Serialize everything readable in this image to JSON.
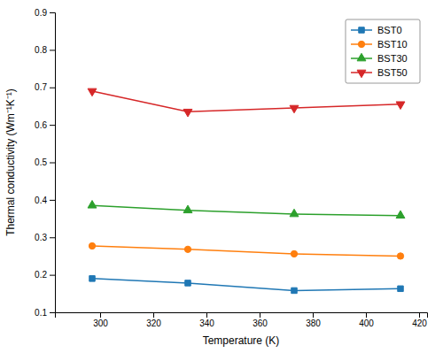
{
  "chart_data": {
    "type": "line",
    "xlabel": "Temperature (K)",
    "ylabel": "Thermal conductivity (Wm⁻¹K⁻¹)",
    "x": [
      297,
      333,
      373,
      413
    ],
    "xlim": [
      283,
      423
    ],
    "ylim": [
      0.1,
      0.9
    ],
    "xticks": [
      300,
      320,
      340,
      360,
      380,
      400,
      420
    ],
    "yticks": [
      0.1,
      0.2,
      0.3,
      0.4,
      0.5,
      0.6,
      0.7,
      0.8,
      0.9
    ],
    "series": [
      {
        "name": "BST0",
        "values": [
          0.19,
          0.178,
          0.158,
          0.163
        ],
        "marker": "square"
      },
      {
        "name": "BST10",
        "values": [
          0.277,
          0.268,
          0.256,
          0.25
        ],
        "marker": "circle"
      },
      {
        "name": "BST30",
        "values": [
          0.385,
          0.372,
          0.362,
          0.358
        ],
        "marker": "triangle-up"
      },
      {
        "name": "BST50",
        "values": [
          0.69,
          0.635,
          0.645,
          0.655
        ],
        "marker": "triangle-down"
      }
    ],
    "legend": "upper right"
  }
}
